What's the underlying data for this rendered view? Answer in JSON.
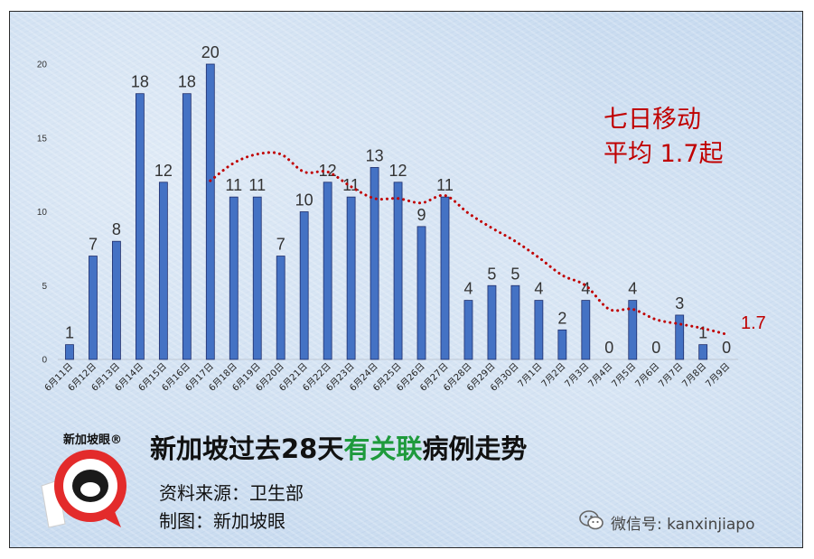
{
  "chart_data": {
    "type": "bar",
    "categories": [
      "6月11日",
      "6月12日",
      "6月13日",
      "6月14日",
      "6月15日",
      "6月16日",
      "6月17日",
      "6月18日",
      "6月19日",
      "6月20日",
      "6月21日",
      "6月22日",
      "6月23日",
      "6月24日",
      "6月25日",
      "6月26日",
      "6月27日",
      "6月28日",
      "6月29日",
      "6月30日",
      "7月1日",
      "7月2日",
      "7月3日",
      "7月4日",
      "7月5日",
      "7月6日",
      "7月7日",
      "7月8日",
      "7月9日"
    ],
    "values": [
      1,
      7,
      8,
      18,
      12,
      18,
      20,
      11,
      11,
      7,
      10,
      12,
      11,
      13,
      12,
      9,
      11,
      4,
      5,
      5,
      4,
      2,
      4,
      0,
      4,
      0,
      3,
      1,
      0
    ],
    "moving_average": {
      "x": [
        "6月17日",
        "6月18日",
        "6月19日",
        "6月20日",
        "6月21日",
        "6月22日",
        "6月23日",
        "6月24日",
        "6月25日",
        "6月26日",
        "6月27日",
        "6月28日",
        "6月29日",
        "6月30日",
        "7月1日",
        "7月2日",
        "7月3日",
        "7月4日",
        "7月5日",
        "7月6日",
        "7月7日",
        "7月8日",
        "7月9日"
      ],
      "values": [
        12.1,
        13.3,
        13.9,
        13.9,
        12.7,
        12.7,
        11.7,
        10.9,
        10.9,
        10.6,
        11.1,
        9.9,
        8.9,
        8.0,
        6.9,
        5.7,
        5.0,
        3.4,
        3.4,
        2.7,
        2.4,
        2.1,
        1.7
      ],
      "end_label": "1.7"
    },
    "ylim": [
      0,
      20
    ],
    "yticks": [
      0,
      5,
      10,
      15,
      20
    ],
    "annotation": [
      "七日移动",
      "平均 1.7起"
    ],
    "bar_color": "#4472c4",
    "line_color": "#c00000"
  },
  "title": {
    "part1": "新加坡过去28天",
    "highlight": "有关联",
    "part2": "病例走势",
    "highlight_color": "#1e9a3c"
  },
  "source": "资料来源：卫生部",
  "credit": "制图：新加坡眼",
  "logo": {
    "text": "新加坡眼",
    "mark": "®",
    "icon": "eye-logo-icon"
  },
  "watermark": {
    "icon": "wechat-icon",
    "text": "微信号: kanxinjiapo"
  }
}
